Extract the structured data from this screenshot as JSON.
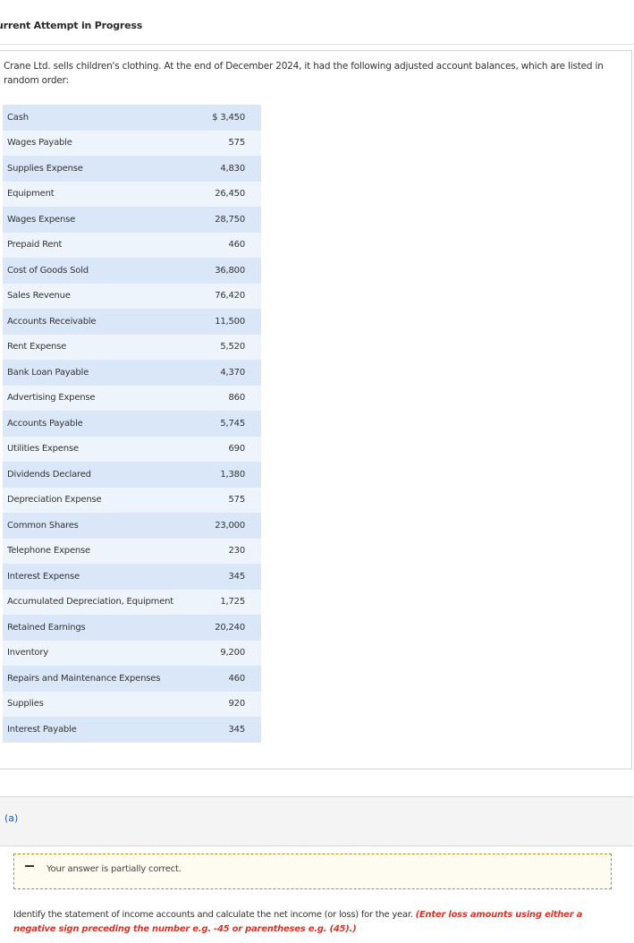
{
  "header": {
    "attempt_status": "urrent Attempt in Progress"
  },
  "question": {
    "intro": "Crane Ltd. sells children's clothing. At the end of December 2024, it had the following adjusted account balances, which are listed in random order:",
    "accounts": [
      {
        "name": "Cash",
        "amount": "$ 3,450"
      },
      {
        "name": "Wages Payable",
        "amount": "575"
      },
      {
        "name": "Supplies Expense",
        "amount": "4,830"
      },
      {
        "name": "Equipment",
        "amount": "26,450"
      },
      {
        "name": "Wages Expense",
        "amount": "28,750"
      },
      {
        "name": "Prepaid Rent",
        "amount": "460"
      },
      {
        "name": "Cost of Goods Sold",
        "amount": "36,800"
      },
      {
        "name": "Sales Revenue",
        "amount": "76,420"
      },
      {
        "name": "Accounts Receivable",
        "amount": "11,500"
      },
      {
        "name": "Rent Expense",
        "amount": "5,520"
      },
      {
        "name": "Bank Loan Payable",
        "amount": "4,370"
      },
      {
        "name": "Advertising Expense",
        "amount": "860"
      },
      {
        "name": "Accounts Payable",
        "amount": "5,745"
      },
      {
        "name": "Utilities Expense",
        "amount": "690"
      },
      {
        "name": "Dividends Declared",
        "amount": "1,380"
      },
      {
        "name": "Depreciation Expense",
        "amount": "575"
      },
      {
        "name": "Common Shares",
        "amount": "23,000"
      },
      {
        "name": "Telephone Expense",
        "amount": "230"
      },
      {
        "name": "Interest Expense",
        "amount": "345"
      },
      {
        "name": "Accumulated Depreciation, Equipment",
        "amount": "1,725"
      },
      {
        "name": "Retained Earnings",
        "amount": "20,240"
      },
      {
        "name": "Inventory",
        "amount": "9,200"
      },
      {
        "name": "Repairs and Maintenance Expenses",
        "amount": "460"
      },
      {
        "name": "Supplies",
        "amount": "920"
      },
      {
        "name": "Interest Payable",
        "amount": "345"
      }
    ]
  },
  "part_a": {
    "label": "(a)",
    "feedback": "Your answer is partially correct.",
    "instruction": "Identify the statement of income accounts and calculate the net income (or loss) for the year.",
    "hint": "(Enter loss amounts using either a negative sign preceding the number e.g. -45 or parentheses e.g. (45).)",
    "feedback_color": "#b38f20",
    "hint_color": "#d0392b"
  }
}
